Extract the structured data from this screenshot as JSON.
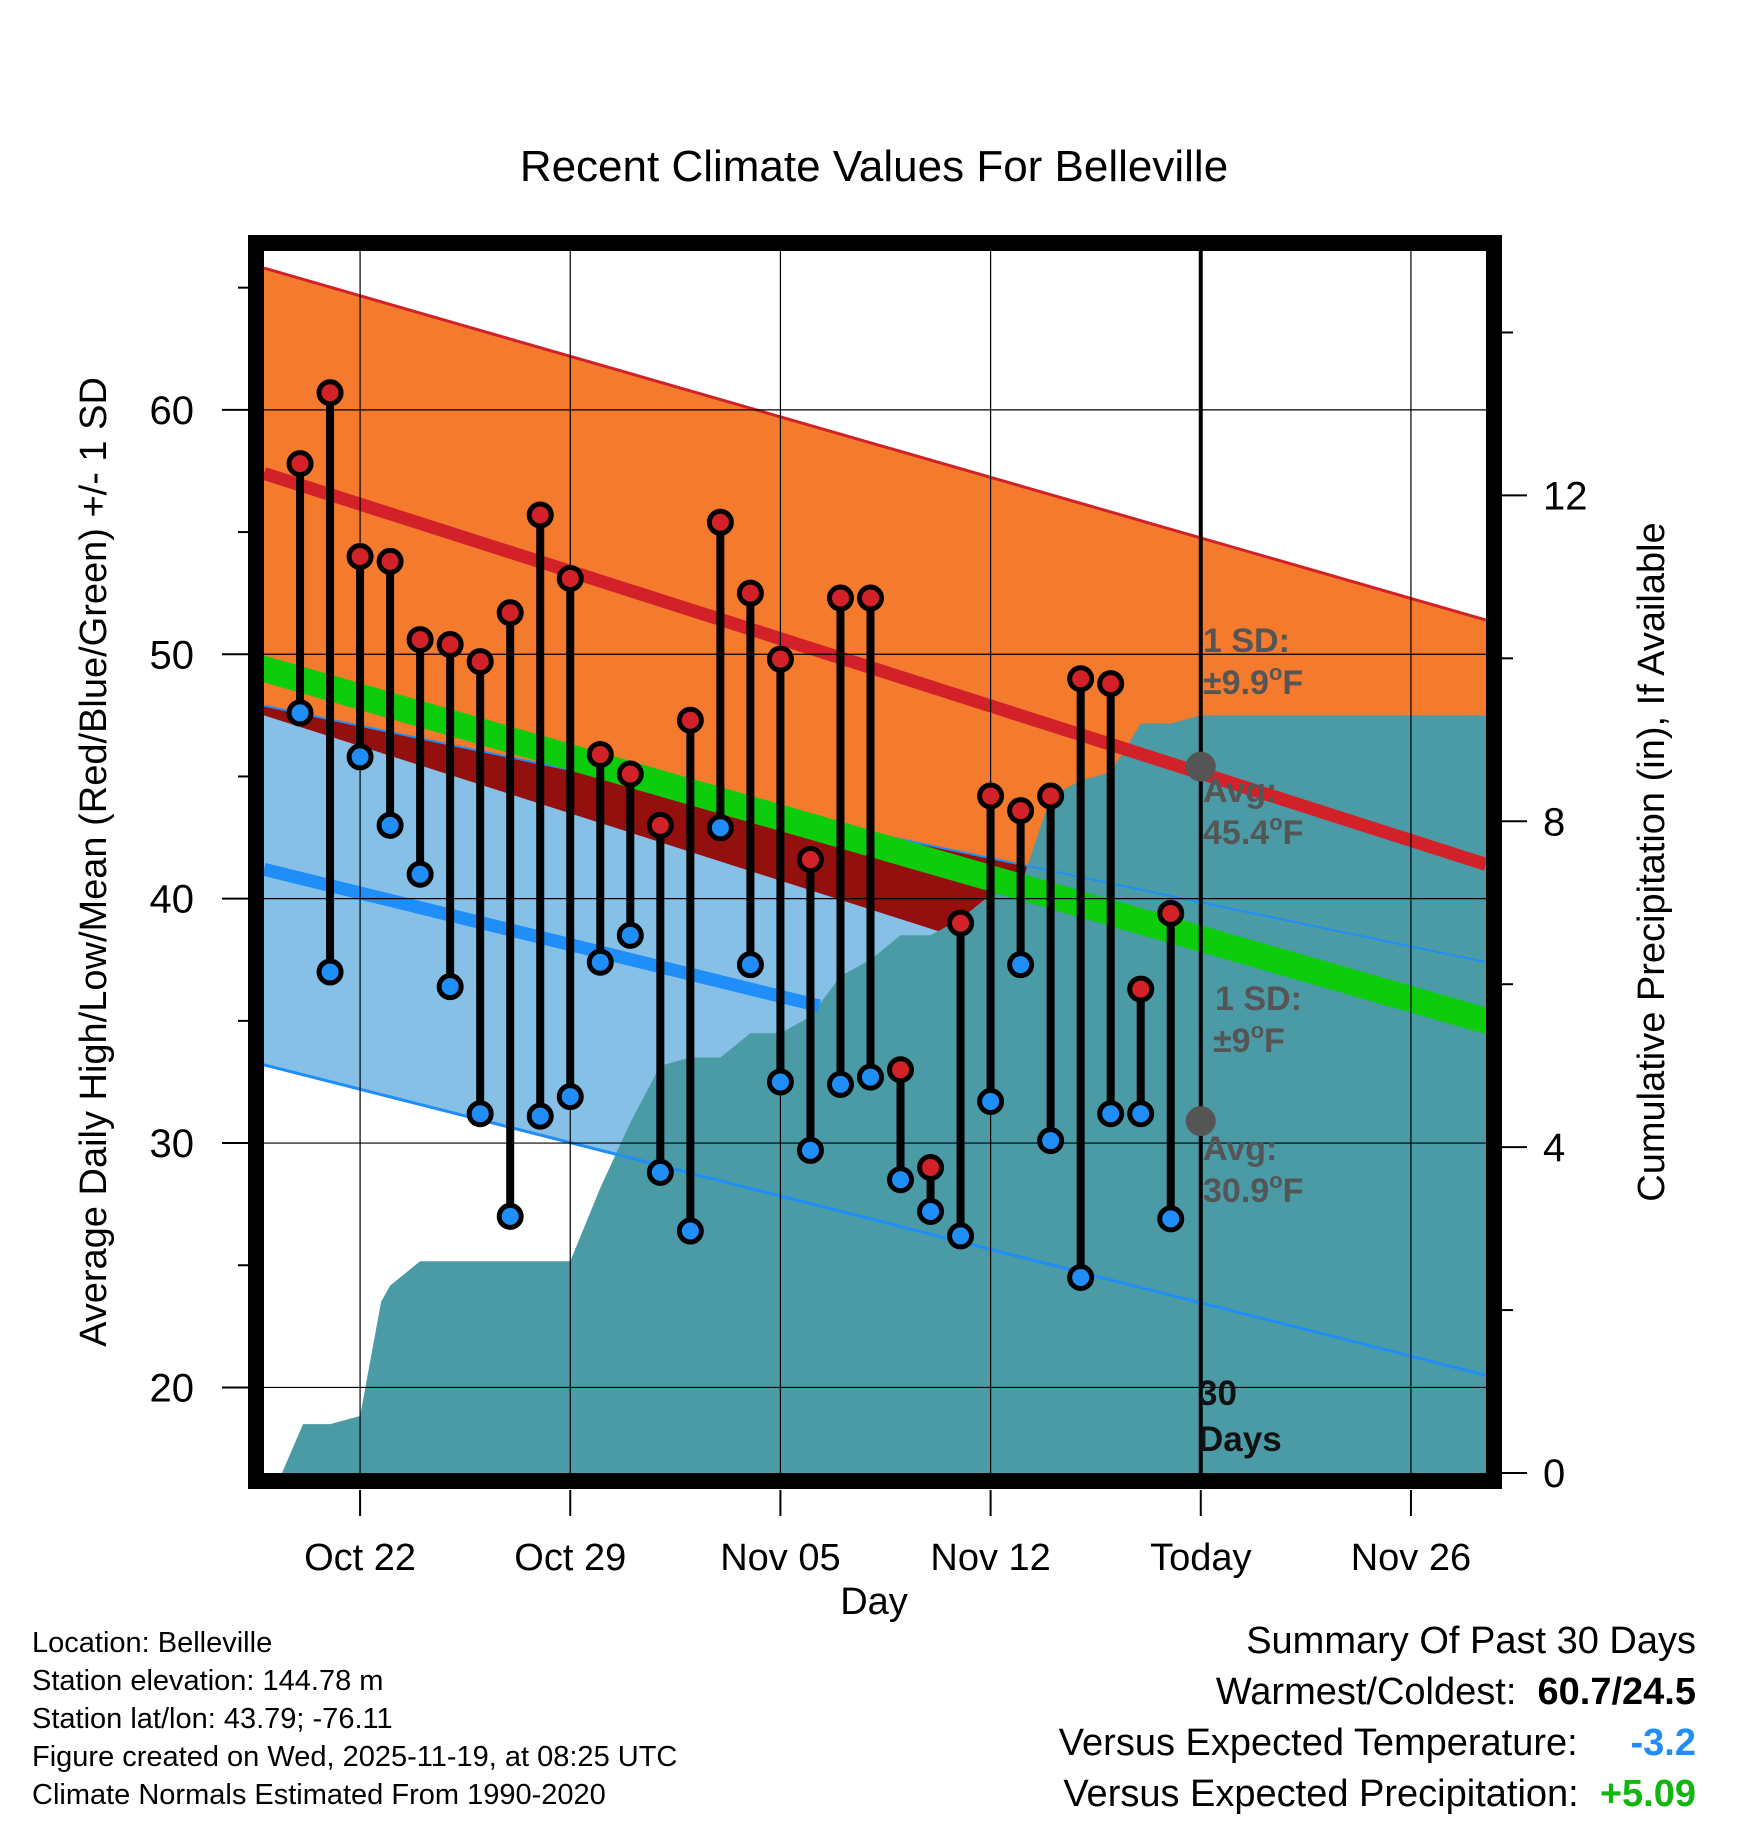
{
  "chart_data": {
    "type": "line",
    "title": "Recent Climate Values For Belleville",
    "xlabel": "Day",
    "ylabel": "Average Daily High/Low/Mean (Red/Blue/Green) +/- 1 SD",
    "y2label": "Cumulative Precipitation (in), If Available",
    "ylim": [
      16.5,
      66.5
    ],
    "y2lim": [
      0,
      15
    ],
    "yticks": [
      20,
      30,
      40,
      50,
      60
    ],
    "y2ticks": [
      0,
      4,
      8,
      12
    ],
    "xlim": [
      -3.2,
      37.5
    ],
    "xticks": [
      {
        "day": 0,
        "label": "Oct 22"
      },
      {
        "day": 7,
        "label": "Oct 29"
      },
      {
        "day": 14,
        "label": "Nov 05"
      },
      {
        "day": 21,
        "label": "Nov 12"
      },
      {
        "day": 28,
        "label": "Today"
      },
      {
        "day": 35,
        "label": "Nov 26"
      }
    ],
    "normals": {
      "high_avg": [
        57.4,
        41.4
      ],
      "high_upper": [
        65.8,
        51.4
      ],
      "low_avg": [
        41.2,
        28.9
      ],
      "low_lower": [
        33.2,
        20.5
      ],
      "low_upper": [
        47.9,
        37.4
      ],
      "mean_avg": [
        49.4,
        35.0
      ],
      "green_band_halfwidth": 0.55
    },
    "daily": {
      "days": [
        -2,
        -1,
        0,
        1,
        2,
        3,
        4,
        5,
        6,
        7,
        8,
        9,
        10,
        11,
        12,
        13,
        14,
        15,
        16,
        17,
        18,
        19,
        20,
        21,
        22,
        23,
        24,
        25,
        26,
        27
      ],
      "high": [
        57.8,
        60.7,
        54.0,
        53.8,
        50.6,
        50.4,
        49.7,
        51.7,
        55.7,
        53.1,
        45.9,
        45.1,
        43.0,
        47.3,
        55.4,
        52.5,
        49.8,
        41.6,
        52.3,
        52.3,
        33.0,
        29.0,
        39.0,
        44.2,
        43.6,
        44.2,
        49.0,
        48.8,
        36.3,
        39.4
      ],
      "low": [
        47.6,
        37.0,
        45.8,
        43.0,
        41.0,
        36.4,
        31.2,
        27.0,
        31.1,
        31.9,
        37.4,
        38.5,
        28.8,
        26.4,
        42.9,
        37.3,
        32.5,
        29.7,
        32.4,
        32.7,
        28.5,
        27.2,
        26.2,
        31.7,
        37.3,
        30.1,
        24.5,
        31.2,
        31.2,
        26.9
      ]
    },
    "precip": {
      "days": [
        -2.6,
        -1.9,
        -1,
        0,
        0.7,
        1,
        2,
        3,
        4,
        5,
        6,
        7,
        8,
        9,
        10,
        11,
        12,
        13,
        14,
        15,
        16,
        17,
        18,
        19,
        20,
        21,
        22,
        23,
        24,
        25,
        26,
        27,
        28,
        37.5
      ],
      "values": [
        0,
        0.6,
        0.6,
        0.7,
        2.1,
        2.3,
        2.6,
        2.6,
        2.6,
        2.6,
        2.6,
        2.6,
        3.5,
        4.3,
        5.0,
        5.1,
        5.1,
        5.4,
        5.4,
        5.6,
        6.1,
        6.3,
        6.6,
        6.6,
        6.8,
        7.1,
        7.2,
        8.3,
        8.5,
        8.6,
        9.2,
        9.2,
        9.3,
        9.3
      ]
    },
    "annotations": {
      "high_sd_line1": "1 SD:",
      "high_sd_line2": "±9.9",
      "high_avg_label": "Avg:",
      "high_avg_value": "45.4",
      "high_avg_marker": 45.4,
      "low_sd_line1": "1 SD:",
      "low_sd_line2": "±9",
      "low_avg_label": "Avg:",
      "low_avg_value": "30.9",
      "low_avg_marker": 30.9,
      "deg_sup": "o",
      "deg_unit": "F",
      "days_line1": "30",
      "days_line2": "Days",
      "today_day": 28
    },
    "colors": {
      "orange": "#f47b2e",
      "red_line": "#d22128",
      "dark_red": "#94100f",
      "green": "#0ccc0c",
      "light_blue": "#86c0e6",
      "blue_line": "#1f8ef9",
      "teal": "#4a9ba5",
      "gray_text": "#555555",
      "high_marker": "#d22128",
      "low_marker": "#1f8ef9"
    }
  },
  "info": {
    "location": "Location: Belleville",
    "elevation": "Station elevation: 144.78 m",
    "latlon": "Station lat/lon: 43.79; -76.11",
    "created": "Figure created on Wed, 2025-11-19, at 08:25 UTC",
    "normals": "Climate Normals Estimated From 1990-2020"
  },
  "summary": {
    "title": "Summary Of Past 30 Days",
    "warm_cold_label": "Warmest/Coldest:",
    "warm_cold_value": "60.7/24.5",
    "temp_label": "Versus Expected Temperature:",
    "temp_value": "-3.2",
    "temp_color": "#1f8ef9",
    "precip_label": "Versus Expected Precipitation:",
    "precip_value": "+5.09",
    "precip_color": "#11b611"
  }
}
